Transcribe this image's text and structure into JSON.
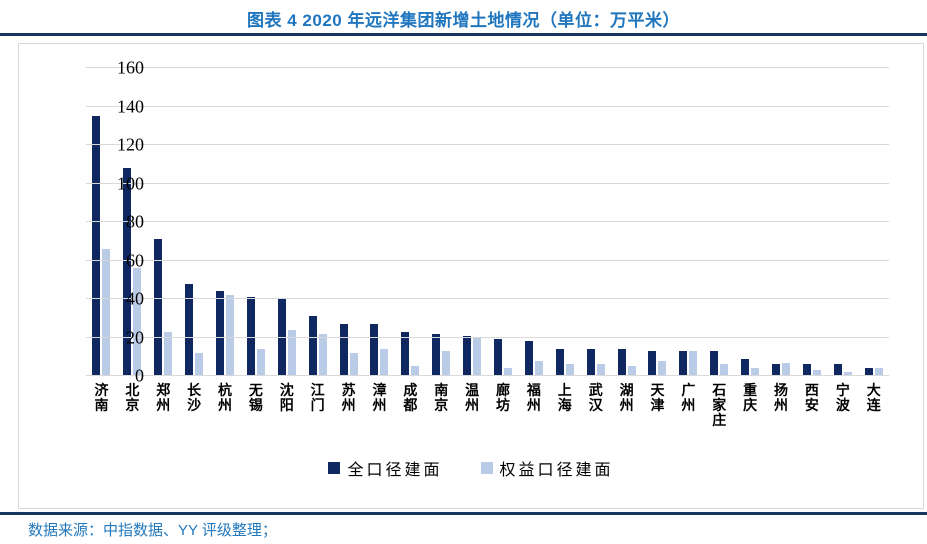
{
  "header": {
    "title": "图表 4 2020 年远洋集团新增土地情况（单位：万平米）"
  },
  "footer": {
    "source": "数据来源：中指数据、YY 评级整理；"
  },
  "colors": {
    "title_blue": "#2076BE",
    "rule_navy": "#17365D",
    "grid_gray": "#D9D9D9",
    "full_caliber_bar": "#0F2862",
    "equity_caliber_bar": "#BACBE7"
  },
  "chart_data": {
    "type": "bar",
    "title": "2020 年远洋集团新增土地情况（单位：万平米）",
    "xlabel": "",
    "ylabel": "",
    "ylim": [
      0,
      160
    ],
    "yticks": [
      0,
      20,
      40,
      60,
      80,
      100,
      120,
      140,
      160
    ],
    "grid": true,
    "legend_position": "bottom",
    "categories": [
      "济南",
      "北京",
      "郑州",
      "长沙",
      "杭州",
      "无锡",
      "沈阳",
      "江门",
      "苏州",
      "漳州",
      "成都",
      "南京",
      "温州",
      "廊坊",
      "福州",
      "上海",
      "武汉",
      "湖州",
      "天津",
      "广州",
      "石家庄",
      "重庆",
      "扬州",
      "西安",
      "宁波",
      "大连"
    ],
    "series": [
      {
        "name": "全口径建面",
        "color": "#0F2862",
        "values": [
          135,
          108,
          71,
          48,
          44,
          41,
          40,
          31,
          27,
          27,
          23,
          22,
          21,
          19,
          18,
          14,
          14,
          14,
          13,
          13,
          13,
          9,
          6.5,
          6,
          6,
          4
        ]
      },
      {
        "name": "权益口径建面",
        "color": "#BACBE7",
        "values": [
          66,
          56,
          23,
          12,
          42,
          14,
          24,
          22,
          12,
          14,
          5,
          13,
          20,
          4,
          8,
          6,
          6,
          5,
          8,
          13,
          6,
          4,
          7,
          3,
          2,
          4
        ]
      }
    ]
  }
}
